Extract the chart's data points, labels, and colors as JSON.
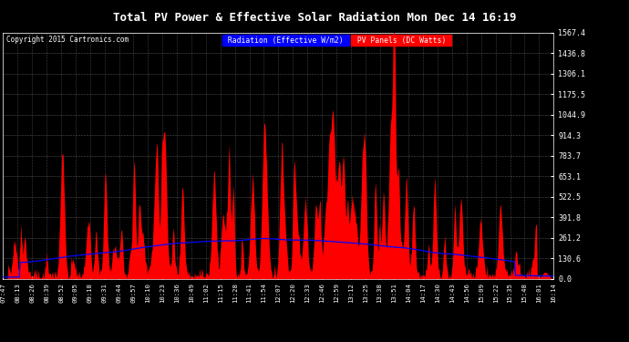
{
  "title": "Total PV Power & Effective Solar Radiation Mon Dec 14 16:19",
  "copyright": "Copyright 2015 Cartronics.com",
  "legend_blue": "Radiation (Effective W/m2)",
  "legend_red": "PV Panels (DC Watts)",
  "bg_color": "#000000",
  "plot_bg_color": "#000000",
  "grid_color": "#888888",
  "title_color": "#ffffff",
  "yticks": [
    0.0,
    130.6,
    261.2,
    391.8,
    522.5,
    653.1,
    783.7,
    914.3,
    1044.9,
    1175.5,
    1306.1,
    1436.8,
    1567.4
  ],
  "ymax": 1567.4,
  "xtick_labels": [
    "07:47",
    "08:13",
    "08:26",
    "08:39",
    "08:52",
    "09:05",
    "09:18",
    "09:31",
    "09:44",
    "09:57",
    "10:10",
    "10:23",
    "10:36",
    "10:49",
    "11:02",
    "11:15",
    "11:28",
    "11:41",
    "11:54",
    "12:07",
    "12:20",
    "12:33",
    "12:46",
    "12:59",
    "13:12",
    "13:25",
    "13:38",
    "13:51",
    "14:04",
    "14:17",
    "14:30",
    "14:43",
    "14:56",
    "15:09",
    "15:22",
    "15:35",
    "15:48",
    "16:01",
    "16:14"
  ]
}
